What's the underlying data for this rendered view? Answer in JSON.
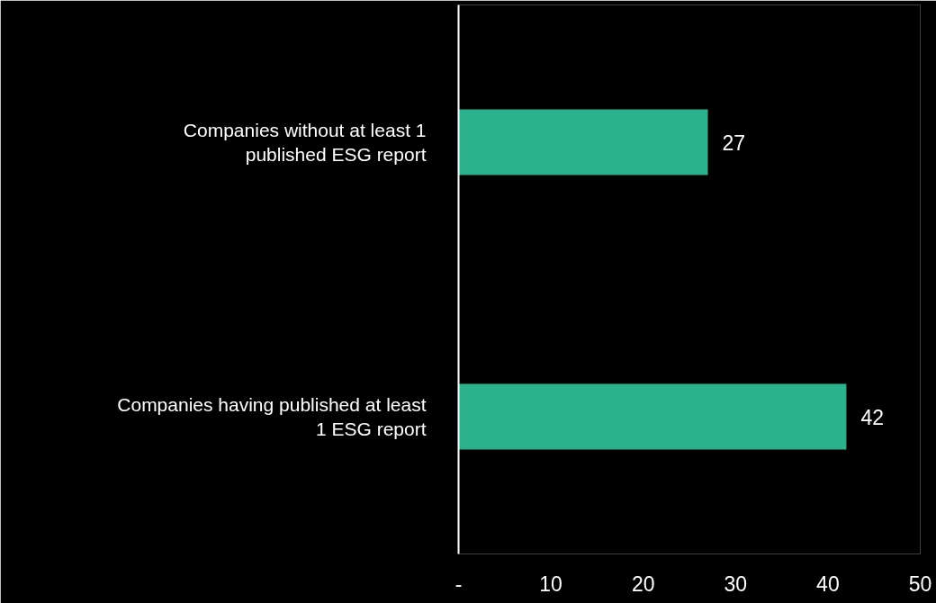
{
  "chart_data": {
    "type": "bar",
    "orientation": "horizontal",
    "categories": [
      "Companies without at least 1 published ESG report",
      "Companies having published at least 1 ESG report"
    ],
    "values": [
      27,
      42
    ],
    "color": "#2bb28c",
    "data_labels": true,
    "grid": false,
    "xlim": [
      0,
      50
    ],
    "xticks": [
      {
        "value": 0,
        "label": "-"
      },
      10,
      20,
      30,
      40,
      50
    ]
  }
}
